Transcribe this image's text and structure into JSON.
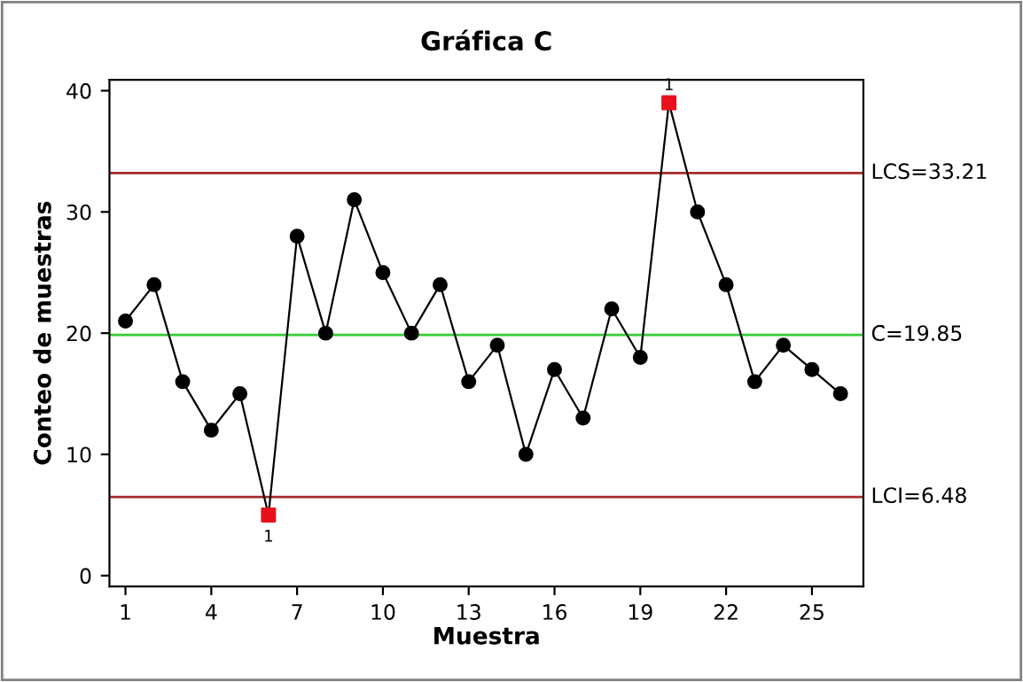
{
  "chart_data": {
    "type": "line",
    "title": "Gráfica C",
    "xlabel": "Muestra",
    "ylabel": "Conteo de muestras",
    "xlim": [
      0.44,
      26.8
    ],
    "ylim": [
      -0.9,
      40.9
    ],
    "xticks": [
      1,
      4,
      7,
      10,
      13,
      16,
      19,
      22,
      25
    ],
    "yticks": [
      0,
      10,
      20,
      30,
      40
    ],
    "grid": false,
    "legend": false,
    "series": [
      {
        "marker": "none",
        "color": "#000000",
        "x": [
          1,
          2,
          3,
          4,
          5,
          6,
          7,
          8,
          9,
          10,
          11,
          12,
          13,
          14,
          15,
          16,
          17,
          18,
          19,
          20,
          21,
          22,
          23,
          24,
          25,
          26
        ],
        "values": [
          21,
          24,
          16,
          12,
          15,
          5,
          28,
          20,
          31,
          25,
          20,
          24,
          16,
          19,
          10,
          17,
          13,
          22,
          18,
          39,
          30,
          24,
          16,
          19,
          17,
          15
        ]
      },
      {
        "type": "scatter",
        "marker": "circle",
        "color": "#000000",
        "x": [
          1,
          2,
          3,
          4,
          5,
          7,
          8,
          9,
          10,
          11,
          12,
          13,
          14,
          15,
          16,
          17,
          18,
          19,
          21,
          22,
          23,
          24,
          25,
          26
        ],
        "values": [
          21,
          24,
          16,
          12,
          15,
          28,
          20,
          31,
          25,
          20,
          24,
          16,
          19,
          10,
          17,
          13,
          22,
          18,
          30,
          24,
          16,
          19,
          17,
          15
        ]
      },
      {
        "type": "scatter",
        "marker": "square",
        "color": "#e8111b",
        "x": [
          6,
          20
        ],
        "values": [
          5,
          39
        ]
      }
    ],
    "ref_lines": [
      {
        "axis": "y",
        "value": 33.21,
        "label": "LCS=33.21",
        "color": "#a52a2a"
      },
      {
        "axis": "y",
        "value": 19.85,
        "label": "C̄=19.85",
        "color": "#33cc33"
      },
      {
        "axis": "y",
        "value": 6.48,
        "label": "LCI=6.48",
        "color": "#a52a2a"
      }
    ],
    "annotations": [
      {
        "text": "1",
        "x": 6,
        "y": 5
      },
      {
        "text": "1",
        "x": 20,
        "y": 39
      }
    ]
  }
}
